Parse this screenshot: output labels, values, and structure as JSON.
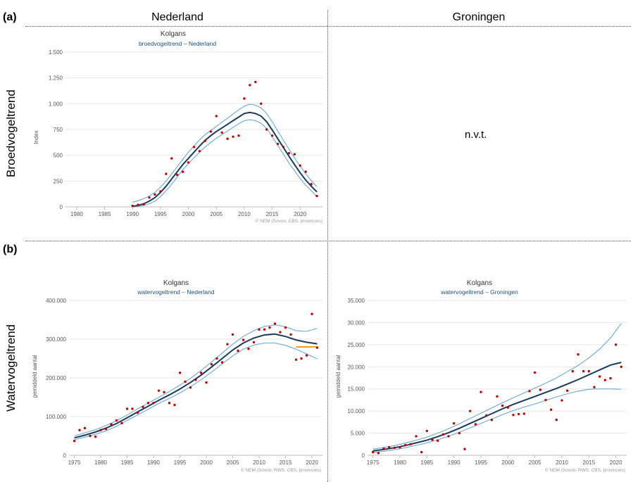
{
  "labels": {
    "a": "(a)",
    "b": "(b)",
    "col_left": "Nederland",
    "col_right": "Groningen",
    "row_top": "Broedvogeltrend",
    "row_bottom": "Watervogeltrend",
    "nvt": "n.v.t."
  },
  "colors": {
    "trend": "#1a3a5c",
    "ci": "#6aa8d0",
    "points": "#c00000",
    "highlight": "#f39c12",
    "grid": "#e6e6e6",
    "subtitle": "#1f4e79"
  },
  "chart_data": [
    {
      "id": "c1",
      "type": "line",
      "title": "Kolgans",
      "subtitle": "broedvogeltrend – Nederland",
      "xlabel": "",
      "ylabel": "Index",
      "credit": "© NEM (Sovon, CBS, provincies)",
      "xlim": [
        1978,
        2024
      ],
      "ylim": [
        0,
        1500
      ],
      "xticks": [
        1980,
        1985,
        1990,
        1995,
        2000,
        2005,
        2010,
        2015,
        2020
      ],
      "yticks": [
        0,
        250,
        500,
        750,
        1000,
        1250,
        1500
      ],
      "ytick_labels": [
        "0",
        "250",
        "500",
        "750",
        "1.000",
        "1.250",
        "1.500"
      ],
      "trend": {
        "x": [
          1990,
          1991,
          1992,
          1993,
          1994,
          1995,
          1996,
          1997,
          1998,
          1999,
          2000,
          2001,
          2002,
          2003,
          2004,
          2005,
          2006,
          2007,
          2008,
          2009,
          2010,
          2011,
          2012,
          2013,
          2014,
          2015,
          2016,
          2017,
          2018,
          2019,
          2020,
          2021,
          2022,
          2023
        ],
        "y": [
          5,
          15,
          30,
          55,
          90,
          140,
          200,
          270,
          340,
          410,
          470,
          530,
          590,
          645,
          690,
          730,
          765,
          800,
          835,
          870,
          905,
          915,
          905,
          880,
          825,
          745,
          660,
          575,
          490,
          410,
          330,
          260,
          200,
          145
        ]
      },
      "upper": {
        "y": [
          45,
          60,
          80,
          105,
          140,
          190,
          250,
          320,
          390,
          460,
          530,
          590,
          650,
          700,
          740,
          780,
          820,
          860,
          900,
          940,
          975,
          995,
          985,
          960,
          905,
          825,
          735,
          645,
          560,
          475,
          395,
          320,
          255,
          195
        ]
      },
      "lower": {
        "y": [
          0,
          5,
          15,
          30,
          55,
          100,
          155,
          220,
          290,
          360,
          420,
          475,
          530,
          580,
          625,
          665,
          700,
          735,
          770,
          805,
          835,
          845,
          835,
          810,
          760,
          680,
          595,
          510,
          425,
          350,
          275,
          210,
          155,
          100
        ]
      },
      "points": {
        "x": [
          1990,
          1991,
          1992,
          1993,
          1994,
          1995,
          1996,
          1997,
          1998,
          1999,
          2000,
          2001,
          2002,
          2003,
          2004,
          2005,
          2006,
          2007,
          2008,
          2009,
          2010,
          2011,
          2012,
          2013,
          2014,
          2015,
          2016,
          2017,
          2018,
          2019,
          2020,
          2021,
          2022,
          2023
        ],
        "y": [
          10,
          20,
          25,
          90,
          120,
          150,
          320,
          470,
          310,
          340,
          430,
          580,
          540,
          640,
          730,
          880,
          720,
          660,
          680,
          690,
          1050,
          1180,
          1210,
          1000,
          750,
          690,
          610,
          580,
          520,
          510,
          400,
          340,
          220,
          105
        ]
      }
    },
    {
      "id": "c2",
      "type": "line",
      "title": "Kolgans",
      "subtitle": "watervogeltrend – Nederland",
      "xlabel": "",
      "ylabel": "gemiddeld aantal",
      "credit": "© NEM (Sovon, RWS, CBS, provincies)",
      "xlim": [
        1974,
        2022
      ],
      "ylim": [
        0,
        400000
      ],
      "xticks": [
        1975,
        1980,
        1985,
        1990,
        1995,
        2000,
        2005,
        2010,
        2015,
        2020
      ],
      "yticks": [
        0,
        100000,
        200000,
        300000,
        400000
      ],
      "ytick_labels": [
        "0",
        "100.000",
        "200.000",
        "300.000",
        "400.000"
      ],
      "trend": {
        "x": [
          1975,
          1977,
          1979,
          1981,
          1983,
          1985,
          1987,
          1989,
          1991,
          1993,
          1995,
          1997,
          1999,
          2001,
          2003,
          2005,
          2007,
          2009,
          2011,
          2013,
          2015,
          2017,
          2019,
          2021
        ],
        "y": [
          45000,
          52000,
          60000,
          70000,
          82000,
          97000,
          112000,
          127000,
          142000,
          156000,
          171000,
          188000,
          207000,
          228000,
          250000,
          272000,
          290000,
          303000,
          311000,
          313000,
          307000,
          298000,
          292000,
          288000
        ]
      },
      "upper": {
        "y": [
          50000,
          58000,
          66000,
          77000,
          89000,
          104000,
          120000,
          135000,
          150000,
          165000,
          181000,
          199000,
          219000,
          241000,
          264000,
          287000,
          307000,
          322000,
          333000,
          337000,
          332000,
          322000,
          320000,
          328000
        ]
      },
      "lower": {
        "y": [
          40000,
          47000,
          54000,
          63000,
          75000,
          90000,
          104000,
          119000,
          134000,
          147000,
          161000,
          177000,
          195000,
          215000,
          236000,
          257000,
          274000,
          285000,
          290000,
          290000,
          284000,
          274000,
          262000,
          249000
        ]
      },
      "highlight": {
        "x": [
          2017,
          2021
        ],
        "y": [
          280000,
          280000
        ]
      },
      "points": {
        "x": [
          1975,
          1976,
          1977,
          1978,
          1979,
          1980,
          1981,
          1982,
          1983,
          1984,
          1985,
          1986,
          1987,
          1988,
          1989,
          1990,
          1991,
          1992,
          1993,
          1994,
          1995,
          1996,
          1997,
          1998,
          1999,
          2000,
          2001,
          2002,
          2003,
          2004,
          2005,
          2006,
          2007,
          2008,
          2009,
          2010,
          2011,
          2012,
          2013,
          2014,
          2015,
          2016,
          2017,
          2018,
          2019,
          2020,
          2021
        ],
        "y": [
          37000,
          65000,
          70000,
          50000,
          48000,
          65000,
          68000,
          80000,
          90000,
          83000,
          120000,
          120000,
          110000,
          125000,
          135000,
          135000,
          167000,
          163000,
          135000,
          130000,
          213000,
          190000,
          175000,
          195000,
          213000,
          188000,
          235000,
          250000,
          240000,
          287000,
          312000,
          270000,
          298000,
          275000,
          292000,
          325000,
          325000,
          330000,
          340000,
          318000,
          330000,
          312000,
          247000,
          250000,
          258000,
          365000,
          278000
        ]
      }
    },
    {
      "id": "c3",
      "type": "line",
      "title": "Kolgans",
      "subtitle": "watervogeltrend – Groningen",
      "xlabel": "",
      "ylabel": "gemiddeld aantal",
      "credit": "© NEM (Sovon, RWS, CBS, provincies)",
      "xlim": [
        1974,
        2022
      ],
      "ylim": [
        0,
        35000
      ],
      "xticks": [
        1975,
        1980,
        1985,
        1990,
        1995,
        2000,
        2005,
        2010,
        2015,
        2020
      ],
      "yticks": [
        0,
        5000,
        10000,
        15000,
        20000,
        25000,
        30000,
        35000
      ],
      "ytick_labels": [
        "0",
        "5.000",
        "10.000",
        "15.000",
        "20.000",
        "25.000",
        "30.000",
        "35.000"
      ],
      "trend": {
        "x": [
          1975,
          1977,
          1979,
          1981,
          1983,
          1985,
          1987,
          1989,
          1991,
          1993,
          1995,
          1997,
          1999,
          2001,
          2003,
          2005,
          2007,
          2009,
          2011,
          2013,
          2015,
          2017,
          2019,
          2021
        ],
        "y": [
          1000,
          1300,
          1700,
          2200,
          2800,
          3400,
          4200,
          5100,
          6100,
          7200,
          8300,
          9400,
          10500,
          11500,
          12400,
          13300,
          14200,
          15100,
          16100,
          17100,
          18200,
          19300,
          20400,
          21000
        ]
      },
      "upper": {
        "y": [
          1400,
          1750,
          2200,
          2750,
          3400,
          4100,
          5000,
          6000,
          7100,
          8300,
          9500,
          10700,
          11900,
          13000,
          14100,
          15200,
          16300,
          17500,
          18900,
          20300,
          22000,
          24000,
          26500,
          29800
        ]
      },
      "lower": {
        "y": [
          650,
          900,
          1250,
          1700,
          2250,
          2800,
          3500,
          4300,
          5200,
          6200,
          7200,
          8200,
          9200,
          10100,
          10900,
          11600,
          12400,
          13200,
          13900,
          14500,
          14900,
          15000,
          15000,
          14900
        ]
      },
      "points": {
        "x": [
          1975,
          1976,
          1977,
          1978,
          1979,
          1980,
          1981,
          1982,
          1983,
          1984,
          1985,
          1986,
          1987,
          1988,
          1989,
          1990,
          1991,
          1992,
          1993,
          1994,
          1995,
          1996,
          1997,
          1998,
          1999,
          2000,
          2001,
          2002,
          2003,
          2004,
          2005,
          2006,
          2007,
          2008,
          2009,
          2010,
          2011,
          2012,
          2013,
          2014,
          2015,
          2016,
          2017,
          2018,
          2019,
          2020,
          2021
        ],
        "y": [
          700,
          500,
          1500,
          1800,
          1700,
          1800,
          2300,
          2500,
          4300,
          700,
          5500,
          3500,
          3300,
          4700,
          4300,
          7200,
          5000,
          1400,
          10000,
          7000,
          14300,
          9000,
          8000,
          13300,
          11200,
          10800,
          9100,
          9300,
          9400,
          14500,
          18700,
          14800,
          12500,
          10300,
          8000,
          12400,
          14600,
          19000,
          22800,
          19000,
          19000,
          15400,
          17800,
          17000,
          17400,
          25000,
          20000
        ]
      }
    }
  ]
}
